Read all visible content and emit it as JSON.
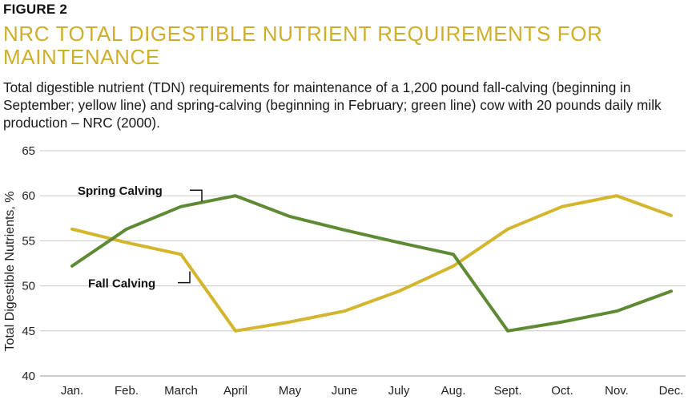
{
  "figure_label": "FIGURE 2",
  "title": "NRC TOTAL DIGESTIBLE NUTRIENT REQUIREMENTS FOR MAINTENANCE",
  "caption": "Total digestible nutrient (TDN) requirements for maintenance of a 1,200 pound fall-calving (beginning in September; yellow line) and spring-calving (beginning in February; green line) cow with 20 pounds daily milk production – NRC (2000).",
  "colors": {
    "spring": "#5e8a34",
    "fall": "#d3b52e",
    "title": "#cfae2a",
    "grid": "#c8c8c8"
  },
  "chart_data": {
    "type": "line",
    "title": "NRC TOTAL DIGESTIBLE NUTRIENT REQUIREMENTS FOR MAINTENANCE",
    "xlabel": "",
    "ylabel": "Total Digestible Nutrients, %",
    "categories": [
      "Jan.",
      "Feb.",
      "March",
      "April",
      "May",
      "June",
      "July",
      "Aug.",
      "Sept.",
      "Oct.",
      "Nov.",
      "Dec."
    ],
    "ylim": [
      40,
      65
    ],
    "yticks": [
      40,
      45,
      50,
      55,
      60,
      65
    ],
    "grid": true,
    "series": [
      {
        "name": "Spring Calving",
        "values": [
          52.2,
          56.3,
          58.8,
          60.0,
          57.7,
          56.2,
          54.8,
          53.5,
          45.0,
          46.0,
          47.2,
          49.4
        ]
      },
      {
        "name": "Fall Calving",
        "values": [
          56.3,
          54.8,
          53.5,
          45.0,
          46.0,
          47.2,
          49.4,
          52.2,
          56.3,
          58.8,
          60.0,
          57.8
        ]
      }
    ],
    "annotations": [
      "Spring Calving",
      "Fall Calving"
    ]
  }
}
